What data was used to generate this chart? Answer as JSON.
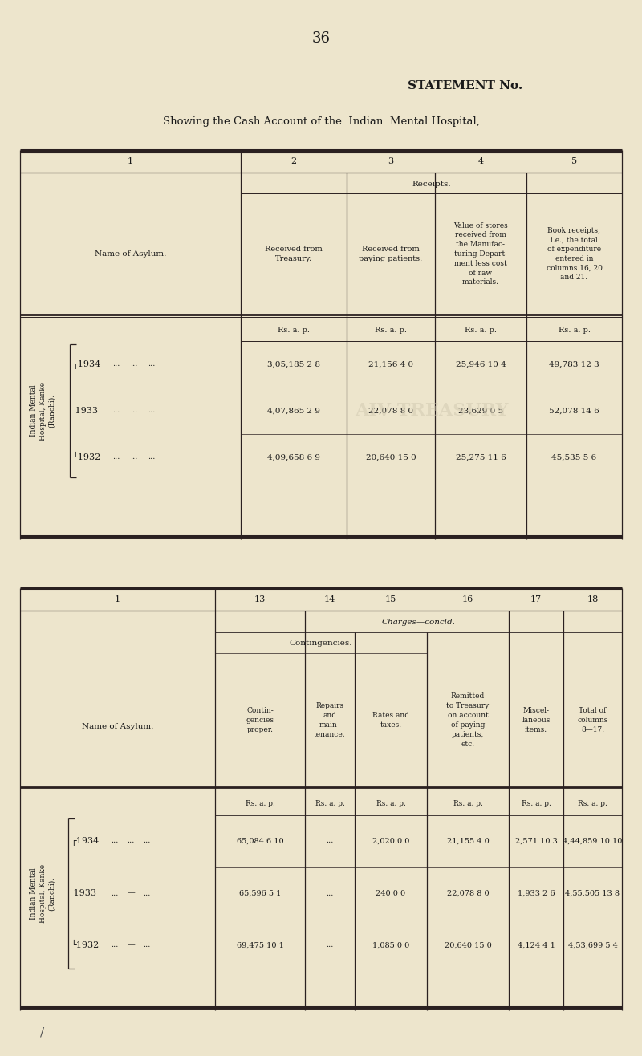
{
  "page_number": "36",
  "statement_title": "STATEMENT No.",
  "subtitle": "Showing the Cash Account of the  Indian  Mental Hospital,",
  "bg_color": "#ede5cc",
  "text_color": "#1a1a1a",
  "table1": {
    "receipts_label": "Receipts.",
    "col2_header": "Received from\nTreasury.",
    "col3_header": "Received from\npaying patients.",
    "col4_header": "Value of stores\nreceived from\nthe Manufac-\nturing Depart-\nment less cost\nof raw\nmaterials.",
    "col5_header": "Book receipts,\ni.e., the total\nof expenditure\nentered in\ncolumns 16, 20\nand 21.",
    "name_of_asylum": "Name of Asylum.",
    "rows": [
      {
        "year": "1934",
        "d1": "...",
        "d2": "...",
        "d3": "...",
        "col2": "3,05,185 2 8",
        "col3": "21,156 4 0",
        "col4": "25,946 10 4",
        "col5": "49,783 12 3"
      },
      {
        "year": "1933",
        "d1": "...",
        "d2": "...",
        "d3": "...",
        "col2": "4,07,865 2 9",
        "col3": "22,078 8 0",
        "col4": "23,629 0 5",
        "col5": "52,078 14 6"
      },
      {
        "year": "1932",
        "d1": "...",
        "d2": "...",
        "d3": "...",
        "col2": "4,09,658 6 9",
        "col3": "20,640 15 0",
        "col4": "25,275 11 6",
        "col5": "45,535 5 6"
      }
    ],
    "row_label": "Indian Mental\nHospital, Kanke\n(Ranchi)."
  },
  "table2": {
    "charges_label": "Charges—concld.",
    "contingencies_label": "Contingencies.",
    "col13_header": "Contin-\ngencies\nproper.",
    "col14_header": "Repairs\nand\nmain-\ntenance.",
    "col15_header": "Rates and\ntaxes.",
    "col16_header": "Remitted\nto Treasury\non account\nof paying\npatients,\netc.",
    "col17_header": "Miscel-\nlaneous\nitems.",
    "col18_header": "Total of\ncolumns\n8—17.",
    "name_of_asylum": "Name of Asylum.",
    "rows": [
      {
        "year": "1934",
        "d1": "...",
        "d2": "...",
        "d3": "...",
        "col13": "65,084 6 10",
        "col14": "...",
        "col15": "2,020 0 0",
        "col16": "21,155 4 0",
        "col17": "2,571 10 3",
        "col18": "4,44,859 10 10"
      },
      {
        "year": "1933",
        "d1": "...",
        "d2": "—",
        "d3": "...",
        "col13": "65,596 5 1",
        "col14": "...",
        "col15": "240 0 0",
        "col16": "22,078 8 0",
        "col17": "1,933 2 6",
        "col18": "4,55,505 13 8"
      },
      {
        "year": "1932",
        "d1": "...",
        "d2": "—",
        "d3": "...",
        "col13": "69,475 10 1",
        "col14": "...",
        "col15": "1,085 0 0",
        "col16": "20,640 15 0",
        "col17": "4,124 4 1",
        "col18": "4,53,699 5 4"
      }
    ],
    "row_label": "Indian Mental\nHospital, Kanke\n(Ranchi)."
  }
}
